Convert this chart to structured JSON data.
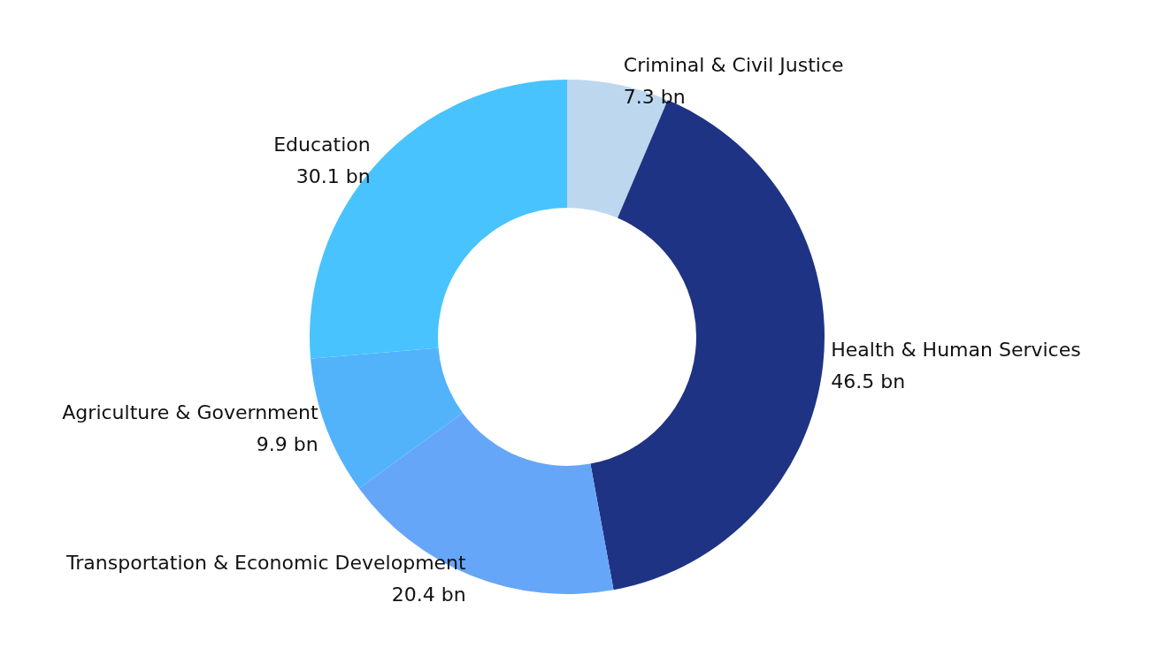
{
  "chart_data": {
    "type": "donut",
    "categories": [
      "Criminal & Civil Justice",
      "Health & Human Services",
      "Transportation & Economic Development",
      "Agriculture & Government",
      "Education"
    ],
    "values": [
      7.3,
      46.5,
      20.4,
      9.9,
      30.1
    ],
    "value_labels": [
      "7.3 bn",
      "46.5 bn",
      "20.4 bn",
      "9.9 bn",
      "30.1 bn"
    ],
    "colors": [
      "#bdd7ee",
      "#1f3385",
      "#66a6f8",
      "#52b3fb",
      "#48c3fd"
    ],
    "legend": false
  }
}
